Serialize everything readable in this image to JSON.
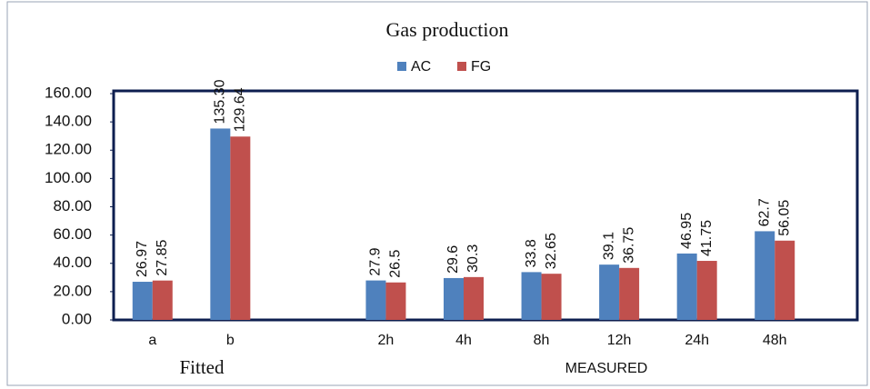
{
  "chart_data": {
    "type": "bar",
    "title": "Gas production",
    "categories": [
      "a",
      "b",
      null,
      "2h",
      "4h",
      "8h",
      "12h",
      "24h",
      "48h"
    ],
    "series": [
      {
        "name": "AC",
        "color": "#4f81bd",
        "values": [
          26.97,
          135.3,
          null,
          27.9,
          29.6,
          33.8,
          39.1,
          46.95,
          62.7
        ],
        "value_labels": [
          "26.97",
          "135.30",
          null,
          "27.9",
          "29.6",
          "33.8",
          "39.1",
          "46.95",
          "62.7"
        ]
      },
      {
        "name": "FG",
        "color": "#c0504d",
        "values": [
          27.85,
          129.64,
          null,
          26.5,
          30.3,
          32.65,
          36.75,
          41.75,
          56.05
        ],
        "value_labels": [
          "27.85",
          "129.64",
          null,
          "26.5",
          "30.3",
          "32.65",
          "36.75",
          "41.75",
          "56.05"
        ]
      }
    ],
    "group_labels": [
      "Fitted",
      "MEASURED"
    ],
    "ylim": [
      0,
      160
    ],
    "yticks": [
      {
        "value": 0,
        "label": "0.00"
      },
      {
        "value": 20,
        "label": "20.00"
      },
      {
        "value": 40,
        "label": "40.00"
      },
      {
        "value": 60,
        "label": "60.00"
      },
      {
        "value": 80,
        "label": "80.00"
      },
      {
        "value": 100,
        "label": "100.00"
      },
      {
        "value": 120,
        "label": "120.00"
      },
      {
        "value": 140,
        "label": "140.00"
      },
      {
        "value": 160,
        "label": "160.00"
      }
    ],
    "legend": "top",
    "grid": false
  }
}
